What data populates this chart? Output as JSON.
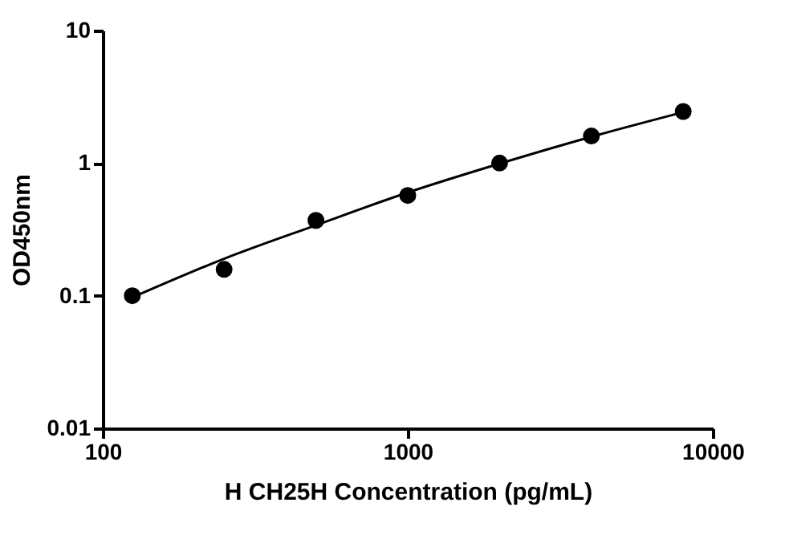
{
  "chart_data": {
    "type": "scatter",
    "xlabel": "H CH25H Concentration (pg/mL)",
    "ylabel": "OD450nm",
    "log": "xy",
    "grid": false,
    "xlim": [
      100,
      10000
    ],
    "xticks": [
      100,
      1000,
      10000
    ],
    "ylim": [
      0.01,
      10
    ],
    "yticks": [
      0.01,
      0.1,
      1,
      10
    ],
    "series": [
      {
        "color": "#000000",
        "marker": "circle",
        "x": [
          125,
          250,
          500,
          1000,
          2000,
          4000,
          8000
        ],
        "values": [
          0.1,
          0.158,
          0.37,
          0.57,
          1.0,
          1.6,
          2.45
        ]
      },
      {
        "type": "line",
        "color": "#000000",
        "marker": "none",
        "line_style": "solid",
        "x": [
          125,
          250,
          500,
          1000,
          2000,
          4000,
          8000
        ],
        "values": [
          0.097,
          0.19,
          0.34,
          0.6,
          0.99,
          1.58,
          2.42
        ]
      }
    ]
  }
}
